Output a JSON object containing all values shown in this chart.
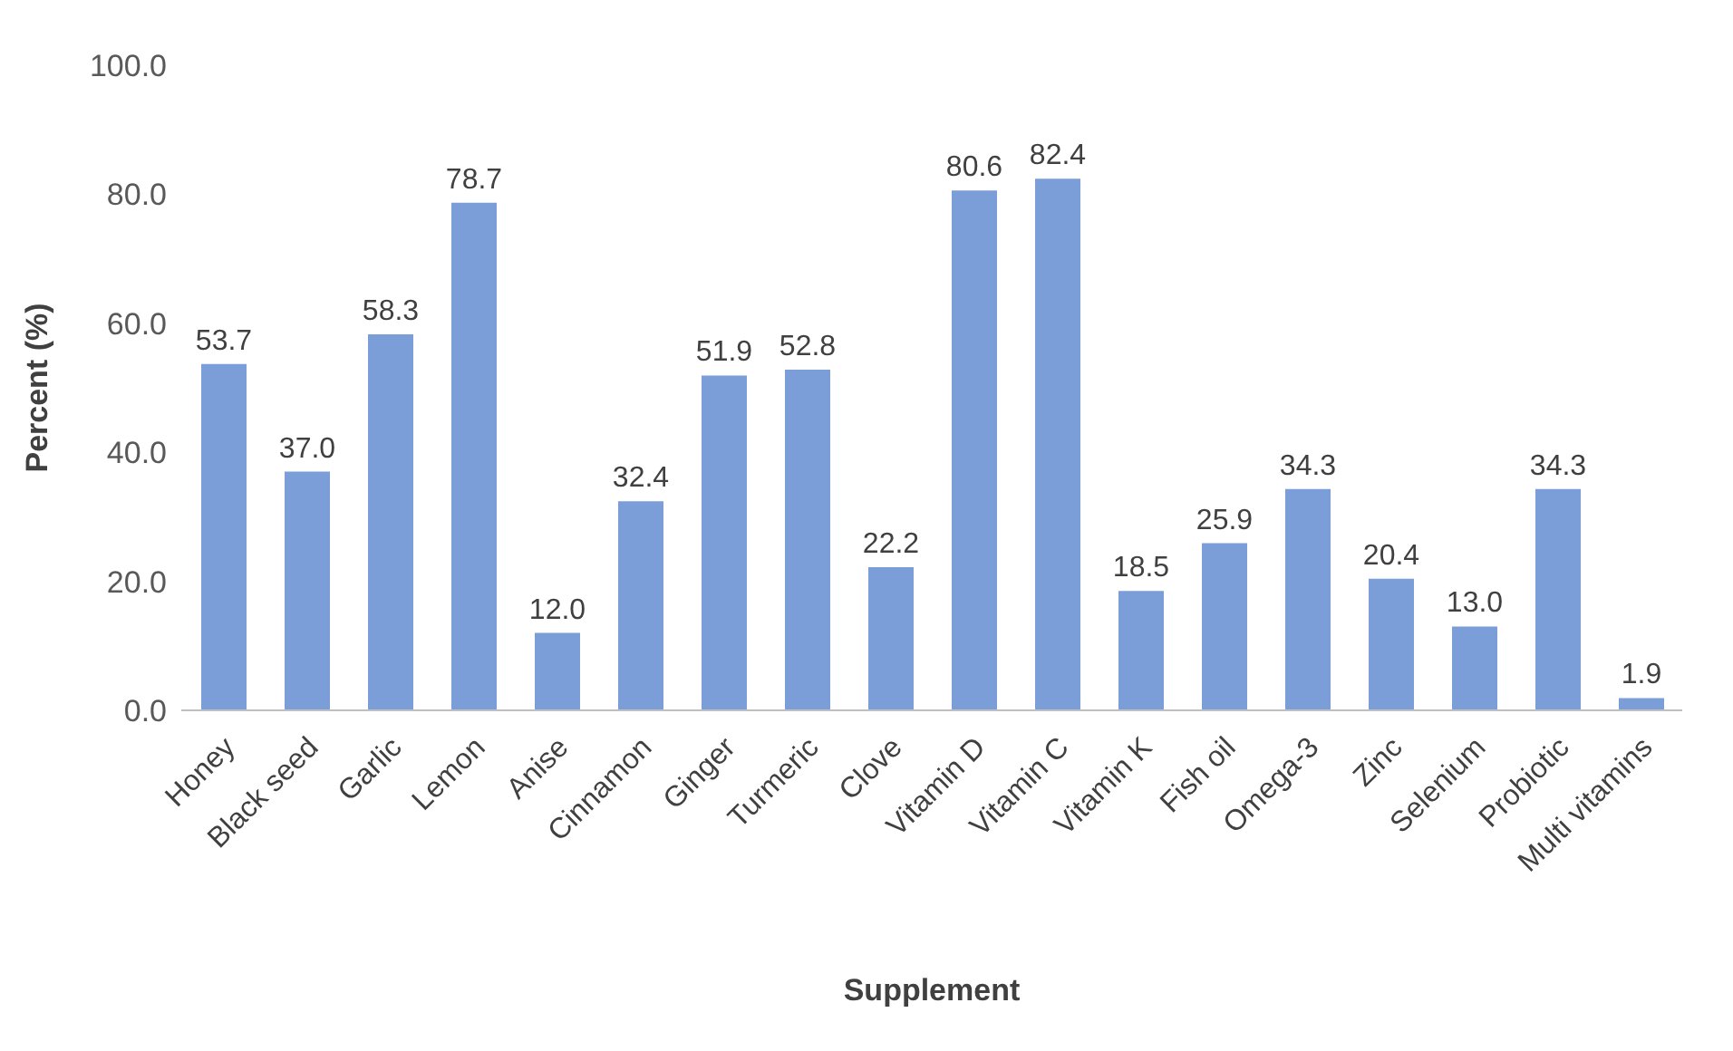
{
  "chart_data": {
    "type": "bar",
    "xlabel": "Supplement",
    "ylabel": "Percent (%)",
    "categories": [
      "Honey",
      "Black seed",
      "Garlic",
      "Lemon",
      "Anise",
      "Cinnamon",
      "Ginger",
      "Turmeric",
      "Clove",
      "Vitamin D",
      "Vitamin C",
      "Vitamin K",
      "Fish oil",
      "Omega-3",
      "Zinc",
      "Selenium",
      "Probiotic",
      "Multi vitamins"
    ],
    "values": [
      53.7,
      37.0,
      58.3,
      78.7,
      12.0,
      32.4,
      51.9,
      52.8,
      22.2,
      80.6,
      82.4,
      18.5,
      25.9,
      34.3,
      20.4,
      13.0,
      34.3,
      1.9
    ],
    "value_labels": [
      "53.7",
      "37.0",
      "58.3",
      "78.7",
      "12.0",
      "32.4",
      "51.9",
      "52.8",
      "22.2",
      "80.6",
      "82.4",
      "18.5",
      "25.9",
      "34.3",
      "20.4",
      "13.0",
      "34.3",
      "1.9"
    ],
    "color": "#7b9ed8",
    "ylim": [
      0,
      100
    ],
    "yticks": [
      {
        "value": 0,
        "label": "0.0"
      },
      {
        "value": 20,
        "label": "20.0"
      },
      {
        "value": 40,
        "label": "40.0"
      },
      {
        "value": 60,
        "label": "60.0"
      },
      {
        "value": 80,
        "label": "80.0"
      },
      {
        "value": 100,
        "label": "100.0"
      }
    ],
    "grid": false,
    "legend": false
  }
}
